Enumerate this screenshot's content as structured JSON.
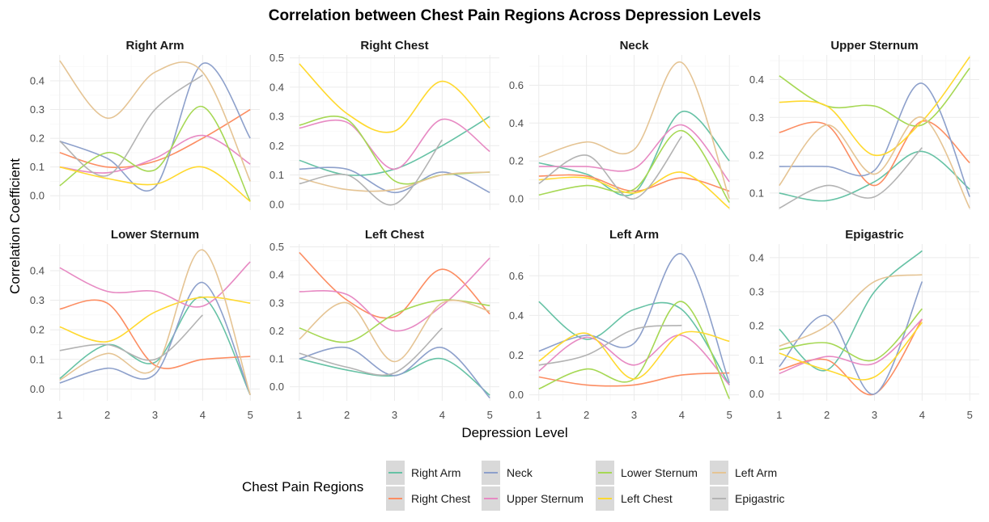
{
  "chart_data": {
    "type": "line",
    "title": "Correlation between Chest Pain Regions Across Depression Levels",
    "xlabel": "Depression Level",
    "ylabel": "Correlation Coefficient",
    "x": [
      1,
      2,
      3,
      4,
      5
    ],
    "x_ticks": [
      "1",
      "2",
      "3",
      "4",
      "5"
    ],
    "legend": {
      "title": "Chest Pain Regions",
      "position": "bottom",
      "entries": [
        "Right Arm",
        "Right Chest",
        "Neck",
        "Upper Sternum",
        "Lower Sternum",
        "Left Chest",
        "Left Arm",
        "Epigastric"
      ]
    },
    "colors": {
      "Right Arm": "#66C2A5",
      "Right Chest": "#FC8D62",
      "Neck": "#8DA0CB",
      "Upper Sternum": "#E78AC3",
      "Lower Sternum": "#A6D854",
      "Left Chest": "#FFD92F",
      "Left Arm": "#E5C494",
      "Epigastric": "#B3B3B3"
    },
    "panels": [
      {
        "name": "Right Arm",
        "ylim": [
          -0.05,
          0.49
        ],
        "yticks": [
          0.0,
          0.1,
          0.2,
          0.3,
          0.4
        ],
        "ytick_labels": [
          "0.0",
          "0.1",
          "0.2",
          "0.3",
          "0.4"
        ],
        "series": [
          {
            "name": "Right Chest",
            "values": [
              0.15,
              0.1,
              0.12,
              0.2,
              0.3
            ]
          },
          {
            "name": "Neck",
            "values": [
              0.19,
              0.13,
              0.03,
              0.46,
              0.2
            ]
          },
          {
            "name": "Upper Sternum",
            "values": [
              0.1,
              0.08,
              0.13,
              0.21,
              0.11
            ]
          },
          {
            "name": "Lower Sternum",
            "values": [
              0.035,
              0.15,
              0.09,
              0.31,
              -0.02
            ]
          },
          {
            "name": "Left Chest",
            "values": [
              0.1,
              0.06,
              0.04,
              0.1,
              -0.02
            ]
          },
          {
            "name": "Left Arm",
            "values": [
              0.47,
              0.27,
              0.43,
              0.43,
              0.05
            ]
          },
          {
            "name": "Epigastric",
            "values": [
              0.19,
              0.07,
              0.3,
              0.42,
              null
            ]
          }
        ]
      },
      {
        "name": "Right Chest",
        "ylim": [
          -0.02,
          0.51
        ],
        "yticks": [
          0.0,
          0.1,
          0.2,
          0.3,
          0.4,
          0.5
        ],
        "ytick_labels": [
          "0.0",
          "0.1",
          "0.2",
          "0.3",
          "0.4",
          "0.5"
        ],
        "series": [
          {
            "name": "Right Arm",
            "values": [
              0.15,
              0.1,
              0.12,
              0.2,
              0.3
            ]
          },
          {
            "name": "Neck",
            "values": [
              0.12,
              0.12,
              0.04,
              0.11,
              0.04
            ]
          },
          {
            "name": "Upper Sternum",
            "values": [
              0.26,
              0.28,
              0.12,
              0.29,
              0.18
            ]
          },
          {
            "name": "Lower Sternum",
            "values": [
              0.27,
              0.29,
              0.08,
              0.1,
              0.11
            ]
          },
          {
            "name": "Left Chest",
            "values": [
              0.48,
              0.31,
              0.25,
              0.42,
              0.26
            ]
          },
          {
            "name": "Left Arm",
            "values": [
              0.09,
              0.05,
              0.05,
              0.1,
              0.11
            ]
          },
          {
            "name": "Epigastric",
            "values": [
              0.07,
              0.1,
              0.0,
              0.22,
              null
            ]
          }
        ]
      },
      {
        "name": "Neck",
        "ylim": [
          -0.06,
          0.76
        ],
        "yticks": [
          0.0,
          0.2,
          0.4,
          0.6
        ],
        "ytick_labels": [
          "0.0",
          "0.2",
          "0.4",
          "0.6"
        ],
        "series": [
          {
            "name": "Right Arm",
            "values": [
              0.19,
              0.13,
              0.03,
              0.46,
              0.2
            ]
          },
          {
            "name": "Right Chest",
            "values": [
              0.12,
              0.12,
              0.04,
              0.11,
              0.04
            ]
          },
          {
            "name": "Upper Sternum",
            "values": [
              0.17,
              0.17,
              0.16,
              0.39,
              0.09
            ]
          },
          {
            "name": "Lower Sternum",
            "values": [
              0.02,
              0.07,
              0.05,
              0.36,
              -0.02
            ]
          },
          {
            "name": "Left Chest",
            "values": [
              0.1,
              0.11,
              0.03,
              0.14,
              -0.05
            ]
          },
          {
            "name": "Left Arm",
            "values": [
              0.22,
              0.3,
              0.26,
              0.72,
              0.0
            ]
          },
          {
            "name": "Epigastric",
            "values": [
              0.08,
              0.23,
              0.0,
              0.33,
              null
            ]
          }
        ]
      },
      {
        "name": "Upper Sternum",
        "ylim": [
          0.055,
          0.465
        ],
        "yticks": [
          0.1,
          0.2,
          0.3,
          0.4
        ],
        "ytick_labels": [
          "0.1",
          "0.2",
          "0.3",
          "0.4"
        ],
        "series": [
          {
            "name": "Right Arm",
            "values": [
              0.1,
              0.08,
              0.13,
              0.21,
              0.11
            ]
          },
          {
            "name": "Right Chest",
            "values": [
              0.26,
              0.28,
              0.12,
              0.29,
              0.18
            ]
          },
          {
            "name": "Neck",
            "values": [
              0.17,
              0.17,
              0.16,
              0.39,
              0.09
            ]
          },
          {
            "name": "Lower Sternum",
            "values": [
              0.41,
              0.33,
              0.33,
              0.28,
              0.43
            ]
          },
          {
            "name": "Left Chest",
            "values": [
              0.34,
              0.33,
              0.2,
              0.29,
              0.46
            ]
          },
          {
            "name": "Left Arm",
            "values": [
              0.12,
              0.28,
              0.15,
              0.3,
              0.06
            ]
          },
          {
            "name": "Epigastric",
            "values": [
              0.06,
              0.12,
              0.09,
              0.22,
              null
            ]
          }
        ]
      },
      {
        "name": "Lower Sternum",
        "ylim": [
          -0.04,
          0.49
        ],
        "yticks": [
          0.0,
          0.1,
          0.2,
          0.3,
          0.4
        ],
        "ytick_labels": [
          "0.0",
          "0.1",
          "0.2",
          "0.3",
          "0.4"
        ],
        "series": [
          {
            "name": "Right Arm",
            "values": [
              0.035,
              0.15,
              0.09,
              0.31,
              -0.02
            ]
          },
          {
            "name": "Right Chest",
            "values": [
              0.27,
              0.29,
              0.08,
              0.1,
              0.11
            ]
          },
          {
            "name": "Neck",
            "values": [
              0.02,
              0.07,
              0.05,
              0.36,
              -0.02
            ]
          },
          {
            "name": "Upper Sternum",
            "values": [
              0.41,
              0.33,
              0.33,
              0.28,
              0.43
            ]
          },
          {
            "name": "Left Chest",
            "values": [
              0.21,
              0.16,
              0.26,
              0.31,
              0.29
            ]
          },
          {
            "name": "Left Arm",
            "values": [
              0.03,
              0.12,
              0.07,
              0.47,
              -0.02
            ]
          },
          {
            "name": "Epigastric",
            "values": [
              0.13,
              0.15,
              0.1,
              0.25,
              null
            ]
          }
        ]
      },
      {
        "name": "Left Chest",
        "ylim": [
          -0.05,
          0.51
        ],
        "yticks": [
          0.0,
          0.1,
          0.2,
          0.3,
          0.4,
          0.5
        ],
        "ytick_labels": [
          "0.0",
          "0.1",
          "0.2",
          "0.3",
          "0.4",
          "0.5"
        ],
        "series": [
          {
            "name": "Right Arm",
            "values": [
              0.1,
              0.06,
              0.04,
              0.1,
              -0.03
            ]
          },
          {
            "name": "Right Chest",
            "values": [
              0.48,
              0.31,
              0.25,
              0.42,
              0.26
            ]
          },
          {
            "name": "Neck",
            "values": [
              0.1,
              0.14,
              0.04,
              0.14,
              -0.04
            ]
          },
          {
            "name": "Upper Sternum",
            "values": [
              0.34,
              0.33,
              0.2,
              0.29,
              0.46
            ]
          },
          {
            "name": "Lower Sternum",
            "values": [
              0.21,
              0.16,
              0.26,
              0.31,
              0.29
            ]
          },
          {
            "name": "Left Arm",
            "values": [
              0.17,
              0.3,
              0.09,
              0.3,
              0.27
            ]
          },
          {
            "name": "Epigastric",
            "values": [
              0.12,
              0.07,
              0.05,
              0.21,
              null
            ]
          }
        ]
      },
      {
        "name": "Left Arm",
        "ylim": [
          -0.03,
          0.76
        ],
        "yticks": [
          0.0,
          0.2,
          0.4,
          0.6
        ],
        "ytick_labels": [
          "0.0",
          "0.2",
          "0.4",
          "0.6"
        ],
        "series": [
          {
            "name": "Right Arm",
            "values": [
              0.47,
              0.28,
              0.43,
              0.43,
              0.05
            ]
          },
          {
            "name": "Right Chest",
            "values": [
              0.09,
              0.05,
              0.05,
              0.1,
              0.11
            ]
          },
          {
            "name": "Neck",
            "values": [
              0.22,
              0.3,
              0.26,
              0.71,
              0.06
            ]
          },
          {
            "name": "Upper Sternum",
            "values": [
              0.12,
              0.29,
              0.15,
              0.3,
              0.05
            ]
          },
          {
            "name": "Lower Sternum",
            "values": [
              0.03,
              0.13,
              0.08,
              0.47,
              -0.02
            ]
          },
          {
            "name": "Left Chest",
            "values": [
              0.17,
              0.31,
              0.08,
              0.31,
              0.27
            ]
          },
          {
            "name": "Epigastric",
            "values": [
              0.15,
              0.2,
              0.33,
              0.35,
              null
            ]
          }
        ]
      },
      {
        "name": "Epigastric",
        "ylim": [
          -0.02,
          0.44
        ],
        "yticks": [
          0.0,
          0.1,
          0.2,
          0.3,
          0.4
        ],
        "ytick_labels": [
          "0.0",
          "0.1",
          "0.2",
          "0.3",
          "0.4"
        ],
        "series": [
          {
            "name": "Right Arm",
            "values": [
              0.19,
              0.07,
              0.3,
              0.42,
              null
            ]
          },
          {
            "name": "Right Chest",
            "values": [
              0.07,
              0.1,
              0.0,
              0.22,
              null
            ]
          },
          {
            "name": "Neck",
            "values": [
              0.08,
              0.23,
              0.0,
              0.33,
              null
            ]
          },
          {
            "name": "Upper Sternum",
            "values": [
              0.06,
              0.11,
              0.09,
              0.22,
              null
            ]
          },
          {
            "name": "Lower Sternum",
            "values": [
              0.13,
              0.15,
              0.1,
              0.25,
              null
            ]
          },
          {
            "name": "Left Chest",
            "values": [
              0.12,
              0.07,
              0.05,
              0.21,
              null
            ]
          },
          {
            "name": "Left Arm",
            "values": [
              0.14,
              0.2,
              0.33,
              0.35,
              null
            ]
          }
        ]
      }
    ]
  }
}
